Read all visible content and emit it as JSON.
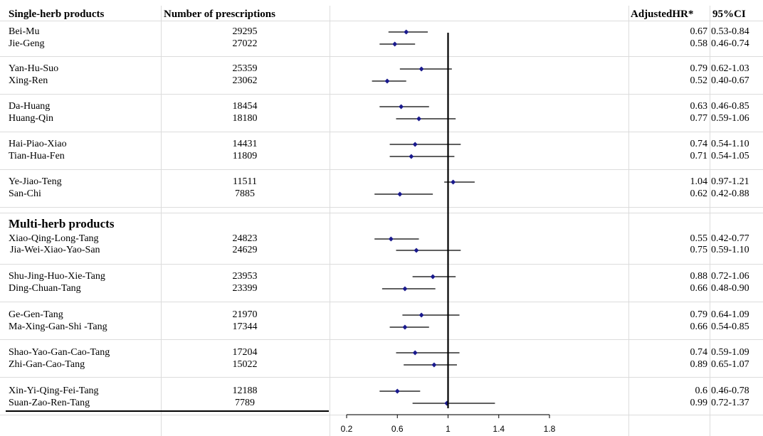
{
  "headers": {
    "herb": "Single-herb products",
    "prescriptions": "Number of prescriptions",
    "hr": "AdjustedHR*",
    "ci": "95%CI"
  },
  "section2_title": "Multi-herb products",
  "colors": {
    "marker": "#1a1a8c",
    "line": "#000000",
    "grid": "#dcdcdc"
  },
  "chart_data": {
    "type": "forest",
    "reference_line": 1,
    "xlim": [
      0.2,
      1.8
    ],
    "xticks": [
      0.2,
      0.6,
      1,
      1.4,
      1.8
    ],
    "xtick_labels": [
      "0.2",
      "0.6",
      "1",
      "1.4",
      "1.8"
    ],
    "rows": [
      {
        "name": "Bei-Mu",
        "n": "29295",
        "hr": 0.67,
        "hr_label": "0.67",
        "low": 0.53,
        "high": 0.84,
        "ci_label": "0.53-0.84",
        "group": 1
      },
      {
        "name": "Jie-Geng",
        "n": "27022",
        "hr": 0.58,
        "hr_label": "0.58",
        "low": 0.46,
        "high": 0.74,
        "ci_label": "0.46-0.74",
        "group": 1
      },
      {
        "name": "Yan-Hu-Suo",
        "n": "25359",
        "hr": 0.79,
        "hr_label": "0.79",
        "low": 0.62,
        "high": 1.03,
        "ci_label": "0.62-1.03",
        "group": 1
      },
      {
        "name": "Xing-Ren",
        "n": "23062",
        "hr": 0.52,
        "hr_label": "0.52",
        "low": 0.4,
        "high": 0.67,
        "ci_label": "0.40-0.67",
        "group": 1
      },
      {
        "name": "Da-Huang",
        "n": "18454",
        "hr": 0.63,
        "hr_label": "0.63",
        "low": 0.46,
        "high": 0.85,
        "ci_label": "0.46-0.85",
        "group": 1
      },
      {
        "name": "Huang-Qin",
        "n": "18180",
        "hr": 0.77,
        "hr_label": "0.77",
        "low": 0.59,
        "high": 1.06,
        "ci_label": "0.59-1.06",
        "group": 1
      },
      {
        "name": "Hai-Piao-Xiao",
        "n": "14431",
        "hr": 0.74,
        "hr_label": "0.74",
        "low": 0.54,
        "high": 1.1,
        "ci_label": "0.54-1.10",
        "group": 1
      },
      {
        "name": "Tian-Hua-Fen",
        "n": "11809",
        "hr": 0.71,
        "hr_label": "0.71",
        "low": 0.54,
        "high": 1.05,
        "ci_label": "0.54-1.05",
        "group": 1
      },
      {
        "name": "Ye-Jiao-Teng",
        "n": "11511",
        "hr": 1.04,
        "hr_label": "1.04",
        "low": 0.97,
        "high": 1.21,
        "ci_label": "0.97-1.21",
        "group": 1
      },
      {
        "name": "San-Chi",
        "n": "7885",
        "hr": 0.62,
        "hr_label": "0.62",
        "low": 0.42,
        "high": 0.88,
        "ci_label": "0.42-0.88",
        "group": 1
      },
      {
        "name": "Xiao-Qing-Long-Tang",
        "n": "24823",
        "hr": 0.55,
        "hr_label": "0.55",
        "low": 0.42,
        "high": 0.77,
        "ci_label": "0.42-0.77",
        "group": 2
      },
      {
        "name": "Jia-Wei-Xiao-Yao-San",
        "n": "24629",
        "hr": 0.75,
        "hr_label": "0.75",
        "low": 0.59,
        "high": 1.1,
        "ci_label": "0.59-1.10",
        "group": 2
      },
      {
        "name": "Shu-Jing-Huo-Xie-Tang",
        "n": "23953",
        "hr": 0.88,
        "hr_label": "0.88",
        "low": 0.72,
        "high": 1.06,
        "ci_label": "0.72-1.06",
        "group": 2
      },
      {
        "name": "Ding-Chuan-Tang",
        "n": "23399",
        "hr": 0.66,
        "hr_label": "0.66",
        "low": 0.48,
        "high": 0.9,
        "ci_label": "0.48-0.90",
        "group": 2
      },
      {
        "name": "Ge-Gen-Tang",
        "n": "21970",
        "hr": 0.79,
        "hr_label": "0.79",
        "low": 0.64,
        "high": 1.09,
        "ci_label": "0.64-1.09",
        "group": 2
      },
      {
        "name": "Ma-Xing-Gan-Shi -Tang",
        "n": "17344",
        "hr": 0.66,
        "hr_label": "0.66",
        "low": 0.54,
        "high": 0.85,
        "ci_label": "0.54-0.85",
        "group": 2
      },
      {
        "name": "Shao-Yao-Gan-Cao-Tang",
        "n": "17204",
        "hr": 0.74,
        "hr_label": "0.74",
        "low": 0.59,
        "high": 1.09,
        "ci_label": "0.59-1.09",
        "group": 2
      },
      {
        "name": "Zhi-Gan-Cao-Tang",
        "n": "15022",
        "hr": 0.89,
        "hr_label": "0.89",
        "low": 0.65,
        "high": 1.07,
        "ci_label": "0.65-1.07",
        "group": 2
      },
      {
        "name": "Xin-Yi-Qing-Fei-Tang",
        "n": "12188",
        "hr": 0.6,
        "hr_label": "0.6",
        "low": 0.46,
        "high": 0.78,
        "ci_label": "0.46-0.78",
        "group": 2
      },
      {
        "name": "Suan-Zao-Ren-Tang",
        "n": "7789",
        "hr": 0.99,
        "hr_label": "0.99",
        "low": 0.72,
        "high": 1.37,
        "ci_label": "0.72-1.37",
        "group": 2
      }
    ]
  }
}
